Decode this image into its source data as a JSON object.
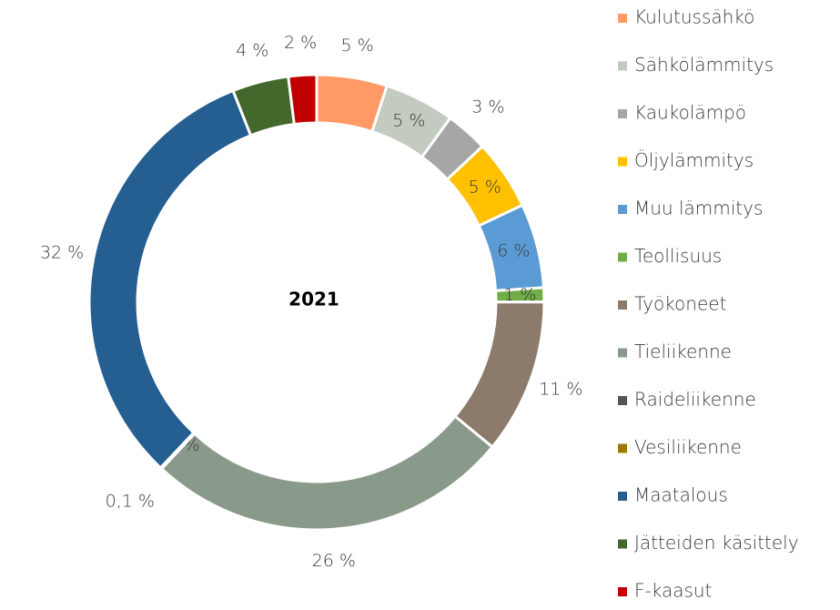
{
  "chart_data": {
    "type": "donut",
    "title": "2021",
    "categories": [
      "Kulutussähkö",
      "Sähkölämmitys",
      "Kaukolämpö",
      "Öljylämmitys",
      "Muu lämmitys",
      "Teollisuus",
      "Työkoneet",
      "Tieliikenne",
      "Raideliikenne",
      "Vesiliikenne",
      "Maatalous",
      "Jätteiden käsittely",
      "F-kaasut"
    ],
    "values": [
      5,
      5,
      3,
      5,
      6,
      1,
      11,
      26,
      0,
      0.1,
      32,
      4,
      2
    ],
    "value_labels": [
      "5 %",
      "5 %",
      "3 %",
      "5 %",
      "6 %",
      "1 %",
      "11 %",
      "26 %",
      "0 %",
      "0,1 %",
      "32 %",
      "4 %",
      "2 %"
    ],
    "colors": [
      "#ff9966",
      "#c3cbc0",
      "#a6a6a6",
      "#ffc000",
      "#5b9bd5",
      "#70ad47",
      "#8c7b6b",
      "#8a9a8a",
      "#555555",
      "#9c7a00",
      "#255e91",
      "#43682b",
      "#c00000"
    ],
    "legend": "right"
  }
}
